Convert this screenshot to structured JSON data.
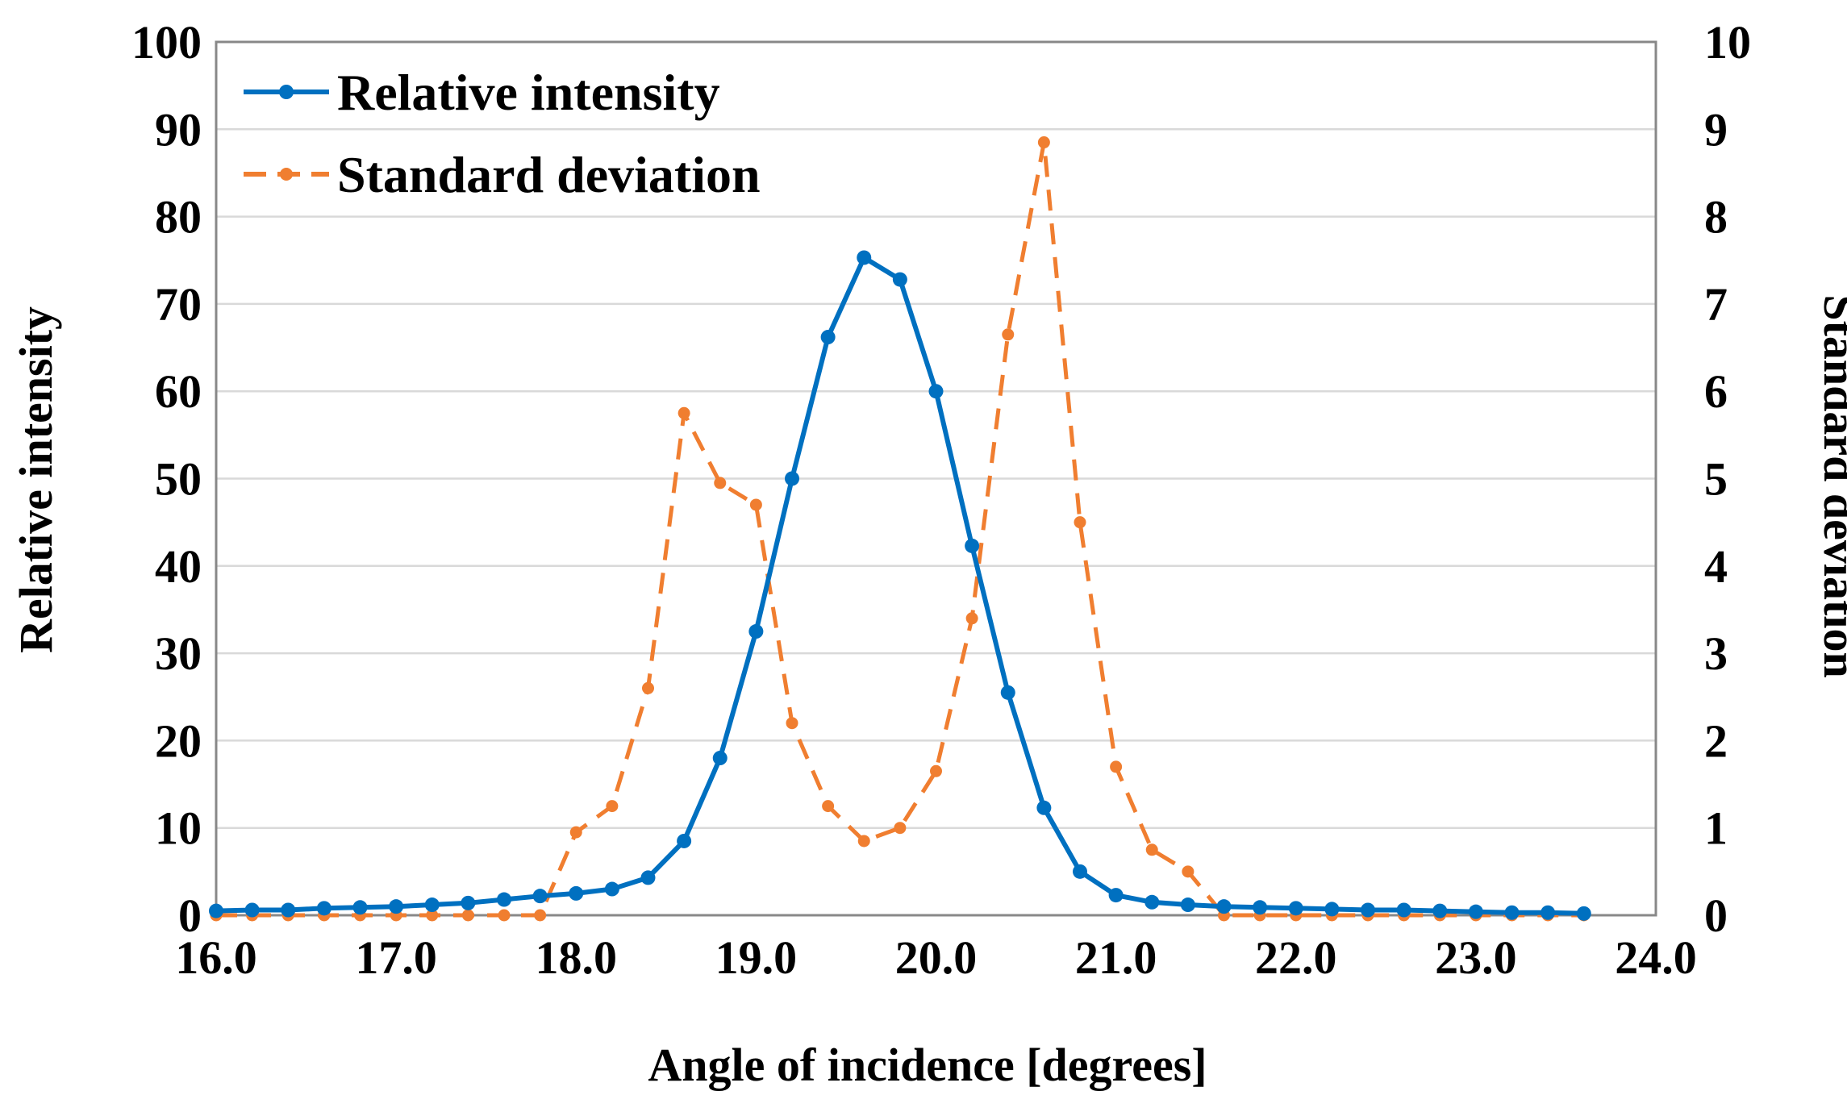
{
  "chart_data": {
    "type": "line",
    "xlabel": "Angle of incidence [degrees]",
    "ylabel": "Relative intensity",
    "y2label": "Standard deviation",
    "xlim": [
      16.0,
      24.0
    ],
    "ylim": [
      0,
      100
    ],
    "y2lim": [
      0,
      10
    ],
    "grid": true,
    "legend_position": "top-left",
    "xticks": [
      "16.0",
      "17.0",
      "18.0",
      "19.0",
      "20.0",
      "21.0",
      "22.0",
      "23.0",
      "24.0"
    ],
    "yticks": [
      "0",
      "10",
      "20",
      "30",
      "40",
      "50",
      "60",
      "70",
      "80",
      "90",
      "100"
    ],
    "y2ticks": [
      "0",
      "1",
      "2",
      "3",
      "4",
      "5",
      "6",
      "7",
      "8",
      "9",
      "10"
    ],
    "x": [
      16.0,
      16.2,
      16.4,
      16.6,
      16.8,
      17.0,
      17.2,
      17.4,
      17.6,
      17.8,
      18.0,
      18.2,
      18.4,
      18.6,
      18.8,
      19.0,
      19.2,
      19.4,
      19.6,
      19.8,
      20.0,
      20.2,
      20.4,
      20.6,
      20.8,
      21.0,
      21.2,
      21.4,
      21.6,
      21.8,
      22.0,
      22.2,
      22.4,
      22.6,
      22.8,
      23.0,
      23.2,
      23.4,
      23.6
    ],
    "series": [
      {
        "name": "Relative intensity",
        "axis": "left",
        "color": "#0070C0",
        "style": "solid",
        "values": [
          0.5,
          0.6,
          0.6,
          0.8,
          0.9,
          1.0,
          1.2,
          1.4,
          1.8,
          2.2,
          2.5,
          3.0,
          4.3,
          8.5,
          18.0,
          32.5,
          50.0,
          66.2,
          75.3,
          72.8,
          60.0,
          42.3,
          25.5,
          12.3,
          5.0,
          2.3,
          1.5,
          1.2,
          1.0,
          0.9,
          0.8,
          0.7,
          0.6,
          0.6,
          0.5,
          0.4,
          0.3,
          0.3,
          0.2
        ]
      },
      {
        "name": "Standard deviation",
        "axis": "right",
        "color": "#F07E30",
        "style": "dashed",
        "values": [
          0.0,
          0.0,
          0.0,
          0.0,
          0.0,
          0.0,
          0.0,
          0.0,
          0.0,
          0.0,
          0.95,
          1.25,
          2.6,
          5.75,
          4.95,
          4.7,
          2.2,
          1.25,
          0.85,
          1.0,
          1.65,
          3.4,
          6.65,
          8.85,
          4.5,
          1.7,
          0.75,
          0.5,
          0.0,
          0.0,
          0.0,
          0.0,
          0.0,
          0.0,
          0.0,
          0.0,
          0.0,
          0.0,
          0.0
        ]
      }
    ]
  }
}
